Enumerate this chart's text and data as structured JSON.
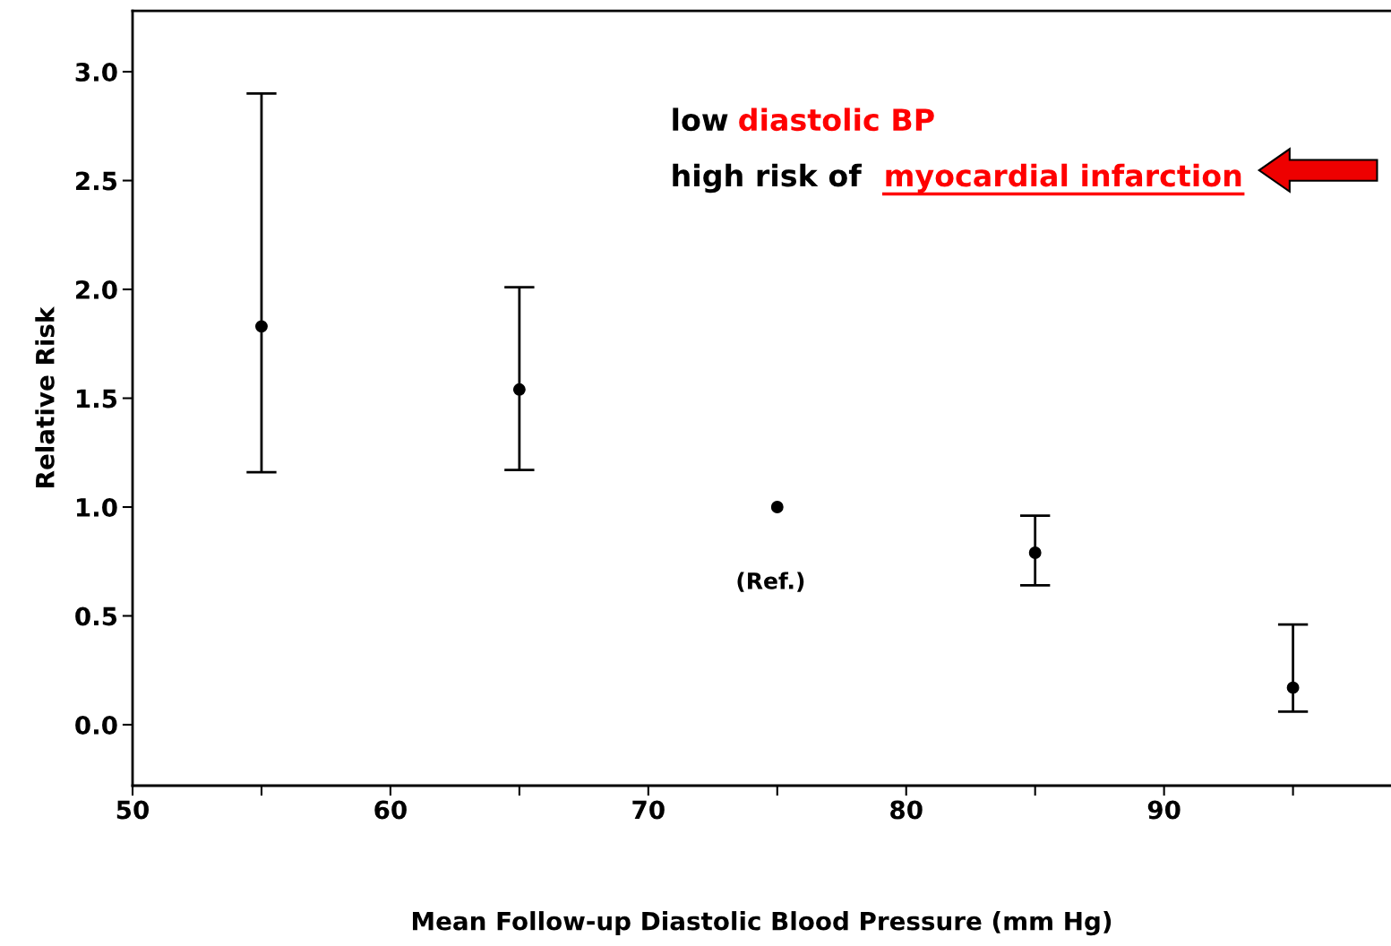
{
  "chart_data": {
    "type": "scatter",
    "xlabel": "Mean Follow-up Diastolic Blood Pressure (mm Hg)",
    "ylabel": "Relative Risk",
    "x": [
      55,
      65,
      75,
      85,
      95
    ],
    "series": [
      {
        "color": "#000000",
        "values": [
          1.83,
          1.54,
          1.0,
          0.79,
          0.17
        ],
        "errors": [
          [
            1.16,
            2.9
          ],
          [
            1.17,
            2.01
          ],
          null,
          [
            0.64,
            0.96
          ],
          [
            0.06,
            0.46
          ]
        ]
      }
    ],
    "xlim": [
      50,
      98.8
    ],
    "ylim": [
      -0.28,
      3.28
    ],
    "xticks": [
      50,
      {
        "value": 55,
        "label": null
      },
      60,
      {
        "value": 65,
        "label": null
      },
      70,
      {
        "value": 75,
        "label": null
      },
      80,
      {
        "value": 85,
        "label": null
      },
      90,
      {
        "value": 95,
        "label": null
      }
    ],
    "yticks": [
      {
        "value": 0,
        "label": "0.0"
      },
      0.5,
      {
        "value": 1,
        "label": "1.0"
      },
      1.5,
      {
        "value": 2,
        "label": "2.0"
      },
      2.5,
      {
        "value": 3,
        "label": "3.0"
      }
    ],
    "marker": "circle",
    "grid": false,
    "annotations": [
      "low",
      "diastolic BP",
      "high risk of",
      "myocardial infarction",
      "(Ref.)"
    ]
  }
}
